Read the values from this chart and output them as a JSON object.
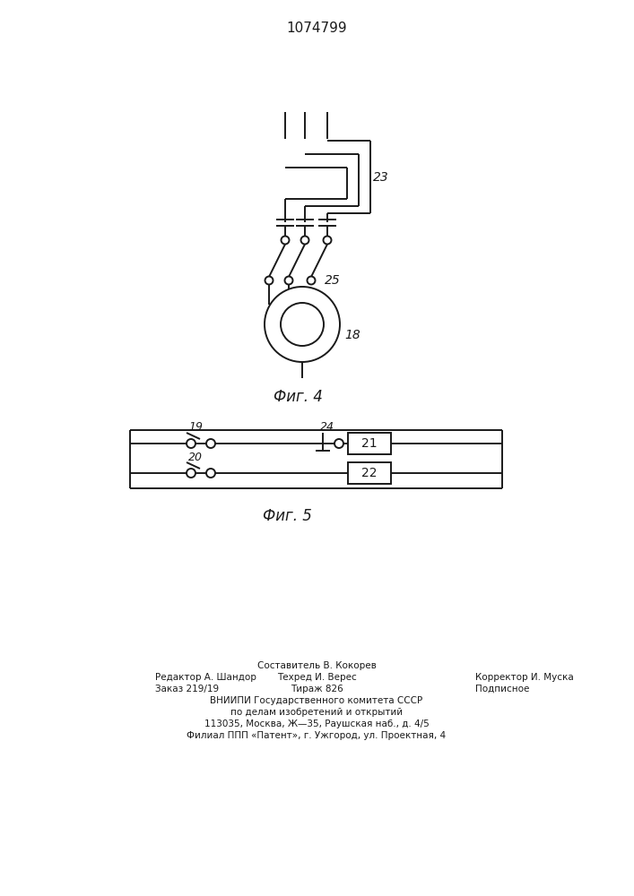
{
  "title": "1074799",
  "fig4_label": "Фиг. 4",
  "fig5_label": "Фиг. 5",
  "label_23": "23",
  "label_25": "25",
  "label_18": "18",
  "label_19": "19",
  "label_20": "20",
  "label_21": "21",
  "label_22": "22",
  "label_24": "24",
  "footer_line1": "Составитель В. Кокорев",
  "footer_line2_left": "Редактор А. Шандор",
  "footer_line2_mid": "Техред И. Верес",
  "footer_line2_right": "Корректор И. Муска",
  "footer_line3_left": "Заказ 219/19",
  "footer_line3_mid": "Тираж 826",
  "footer_line3_right": "Подписное",
  "footer_line4": "ВНИИПИ Государственного комитета СССР",
  "footer_line5": "по делам изобретений и открытий",
  "footer_line6": "113035, Москва, Ж—35, Раушская наб., д. 4/5",
  "footer_line7": "Филиал ППП «Патент», г. Ужгород, ул. Проектная, 4",
  "bg_color": "#ffffff",
  "line_color": "#1a1a1a",
  "text_color": "#1a1a1a"
}
